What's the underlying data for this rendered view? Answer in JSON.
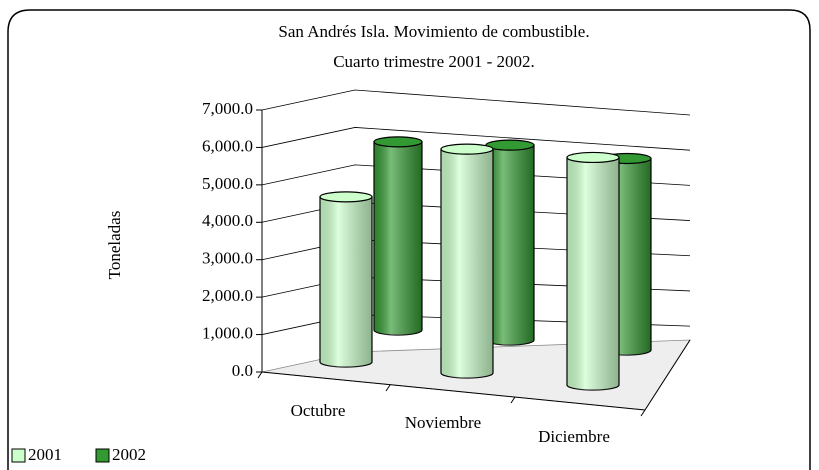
{
  "chart_data": {
    "type": "bar3d",
    "title": "San Andrés Isla. Movimiento de combustible.",
    "subtitle": "Cuarto trimestre 2001 - 2002.",
    "y_label": "Toneladas",
    "categories": [
      "Octubre",
      "Noviembre",
      "Diciembre"
    ],
    "series": [
      {
        "name": "2001",
        "color": "#ccffcc",
        "values": [
          4500,
          6100,
          6200
        ]
      },
      {
        "name": "2002",
        "color": "#339933",
        "values": [
          5600,
          5800,
          5700
        ]
      }
    ],
    "ylim": [
      0,
      7000
    ],
    "yticks": [
      {
        "value": 0,
        "label": "0.0"
      },
      {
        "value": 1000,
        "label": "1,000.0"
      },
      {
        "value": 2000,
        "label": "2,000.0"
      },
      {
        "value": 3000,
        "label": "3,000.0"
      },
      {
        "value": 4000,
        "label": "4,000.0"
      },
      {
        "value": 5000,
        "label": "5,000.0"
      },
      {
        "value": 6000,
        "label": "6,000.0"
      },
      {
        "value": 7000,
        "label": "7,000.0"
      }
    ],
    "grid": true,
    "legend": "bottom-left"
  }
}
